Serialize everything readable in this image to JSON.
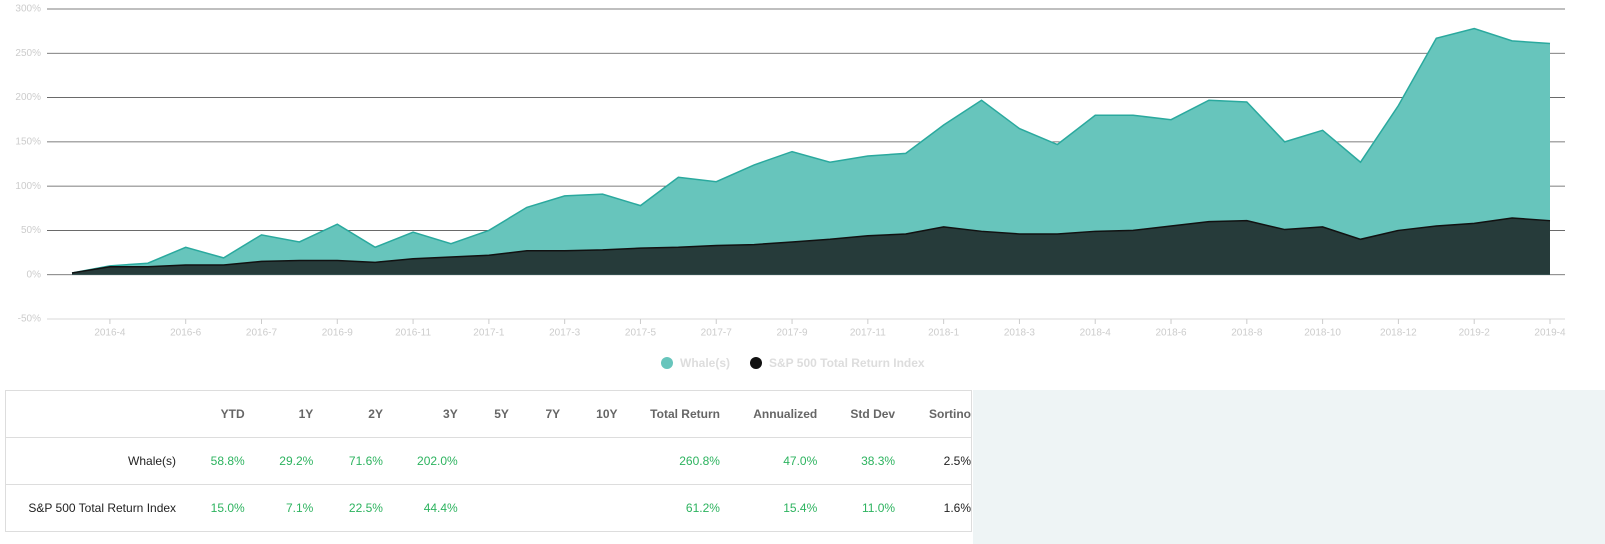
{
  "chart_data": {
    "type": "area",
    "categories": [
      null,
      "2016-4",
      null,
      "2016-6",
      null,
      "2016-7",
      null,
      "2016-9",
      null,
      "2016-11",
      null,
      "2017-1",
      null,
      "2017-3",
      null,
      "2017-5",
      null,
      "2017-7",
      null,
      "2017-9",
      null,
      "2017-11",
      null,
      "2018-1",
      null,
      "2018-3",
      null,
      "2018-4",
      null,
      "2018-6",
      null,
      "2018-8",
      null,
      "2018-10",
      null,
      "2018-12",
      null,
      "2019-2",
      null,
      "2019-4"
    ],
    "series": [
      {
        "name": "Whale(s)",
        "color": "#2aa99e",
        "fill": "#67c5bc",
        "values": [
          2,
          10,
          13,
          31,
          19,
          45,
          37,
          57,
          31,
          48,
          35,
          50,
          76,
          89,
          91,
          78,
          110,
          105,
          124,
          139,
          127,
          134,
          137,
          169,
          197,
          165,
          147,
          180,
          180,
          175,
          197,
          195,
          150,
          163,
          127,
          191,
          267,
          278,
          264,
          261
        ]
      },
      {
        "name": "S&P 500 Total Return Index",
        "color": "#111111",
        "fill": "#263b3a",
        "values": [
          2,
          9,
          9,
          11,
          11,
          15,
          16,
          16,
          14,
          18,
          20,
          22,
          27,
          27,
          28,
          30,
          31,
          33,
          34,
          37,
          40,
          44,
          46,
          54,
          49,
          46,
          46,
          49,
          50,
          55,
          60,
          61,
          51,
          54,
          40,
          50,
          55,
          58,
          64,
          61
        ]
      }
    ],
    "ylim": [
      -50,
      300
    ],
    "yticks": [
      {
        "value": -50,
        "label": "-50%"
      },
      {
        "value": 0,
        "label": "0%"
      },
      {
        "value": 50,
        "label": "50%"
      },
      {
        "value": 100,
        "label": "100%"
      },
      {
        "value": 150,
        "label": "150%"
      },
      {
        "value": 200,
        "label": "200%"
      },
      {
        "value": 250,
        "label": "250%"
      },
      {
        "value": 300,
        "label": "300%"
      }
    ],
    "grid": true
  },
  "table": {
    "headers": [
      "YTD",
      "1Y",
      "2Y",
      "3Y",
      "5Y",
      "7Y",
      "10Y",
      "Total Return",
      "Annualized",
      "Std Dev",
      "Sortino"
    ],
    "rows": [
      {
        "name": "Whale(s)",
        "cells": [
          "58.8%",
          "29.2%",
          "71.6%",
          "202.0%",
          null,
          null,
          null,
          "260.8%",
          "47.0%",
          "38.3%",
          "2.5%"
        ]
      },
      {
        "name": "S&P 500 Total Return Index",
        "cells": [
          "15.0%",
          "7.1%",
          "22.5%",
          "44.4%",
          null,
          null,
          null,
          "61.2%",
          "15.4%",
          "11.0%",
          "1.6%"
        ]
      }
    ]
  }
}
